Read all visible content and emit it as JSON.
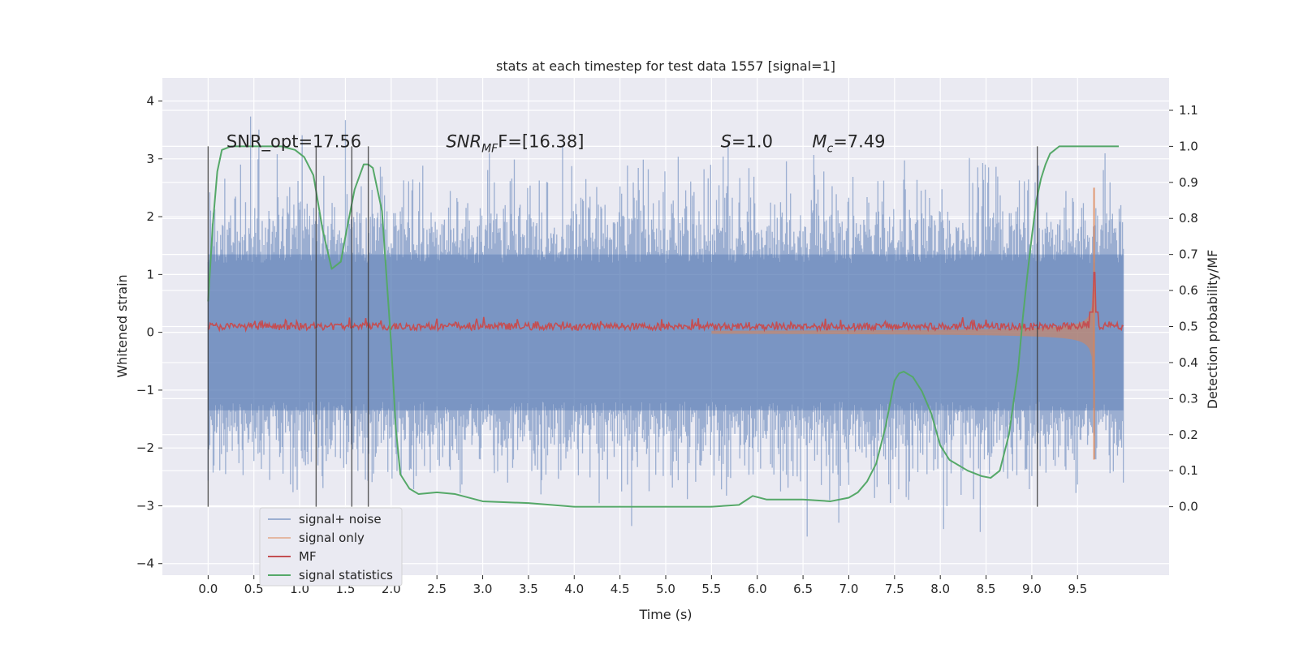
{
  "chart_data": {
    "type": "line",
    "title": "stats at each timestep for test data 1557 [signal=1]",
    "xlabel": "Time (s)",
    "ylabel": "Whitened strain",
    "y2label": "Detection probability/MF",
    "xlim": [
      -0.5,
      10.5
    ],
    "ylim": [
      -4.2,
      4.4
    ],
    "y2lim": [
      -0.19,
      1.19
    ],
    "xticks": [
      "0.0",
      "0.5",
      "1.0",
      "1.5",
      "2.0",
      "2.5",
      "3.0",
      "3.5",
      "4.0",
      "4.5",
      "5.0",
      "5.5",
      "6.0",
      "6.5",
      "7.0",
      "7.5",
      "8.0",
      "8.5",
      "9.0",
      "9.5"
    ],
    "yticks": [
      "−4",
      "−3",
      "−2",
      "−1",
      "0",
      "1",
      "2",
      "3",
      "4"
    ],
    "y2ticks": [
      "0.0",
      "0.1",
      "0.2",
      "0.3",
      "0.4",
      "0.5",
      "0.6",
      "0.7",
      "0.8",
      "0.9",
      "1.0",
      "1.1"
    ],
    "grid": true,
    "background": "#EAEAF2",
    "legend_position": "lower-left",
    "annotations": [
      {
        "text": "SNR_opt=17.56",
        "x": 0.2,
        "y": 3.2
      },
      {
        "text_main": "SNR",
        "text_sub": "MF",
        "text_tail": "F=[16.38]",
        "x": 2.6,
        "y": 3.2
      },
      {
        "text_main": "S",
        "text_tail": "=1.0",
        "x": 5.6,
        "y": 3.2
      },
      {
        "text_main": "M",
        "text_sub": "c",
        "text_tail": "=7.49",
        "x": 6.6,
        "y": 3.2
      }
    ],
    "vertical_lines": [
      0.0,
      1.18,
      1.57,
      1.75,
      9.06
    ],
    "series": [
      {
        "name": "signal+ noise",
        "color": "#4C72B0",
        "axis": "left",
        "description_envelope": {
          "x_start": 0.0,
          "x_end": 10.0,
          "amplitude_1sigma": 1.0,
          "peak": 4.0
        }
      },
      {
        "name": "signal only",
        "color": "#DD8452",
        "axis": "left",
        "chirp": {
          "x_start": 5.5,
          "merger": 9.68,
          "amplitude_at_merger": 2.5
        }
      },
      {
        "name": "MF",
        "color": "#C44E52",
        "axis": "right",
        "baseline": 0.5,
        "peak": {
          "x": 9.68,
          "y": 0.65
        }
      },
      {
        "name": "signal statistics",
        "color": "#55A868",
        "axis": "right",
        "x": [
          0.0,
          0.05,
          0.1,
          0.15,
          0.25,
          0.4,
          0.6,
          0.8,
          0.95,
          1.05,
          1.15,
          1.25,
          1.35,
          1.45,
          1.5,
          1.6,
          1.7,
          1.75,
          1.8,
          1.9,
          2.0,
          2.05,
          2.1,
          2.2,
          2.3,
          2.5,
          2.7,
          3.0,
          3.5,
          4.0,
          4.5,
          5.0,
          5.5,
          5.8,
          5.95,
          6.1,
          6.3,
          6.5,
          6.8,
          7.0,
          7.1,
          7.2,
          7.3,
          7.4,
          7.5,
          7.55,
          7.6,
          7.7,
          7.8,
          7.9,
          8.0,
          8.1,
          8.3,
          8.45,
          8.55,
          8.65,
          8.75,
          8.85,
          8.9,
          8.95,
          9.0,
          9.05,
          9.1,
          9.15,
          9.2,
          9.3,
          9.4,
          9.6,
          9.95
        ],
        "y": [
          0.57,
          0.78,
          0.93,
          0.99,
          1.0,
          1.0,
          1.0,
          1.0,
          0.99,
          0.97,
          0.92,
          0.77,
          0.66,
          0.68,
          0.75,
          0.88,
          0.95,
          0.95,
          0.94,
          0.82,
          0.45,
          0.22,
          0.09,
          0.05,
          0.035,
          0.04,
          0.035,
          0.015,
          0.01,
          0.0,
          0.0,
          0.0,
          0.0,
          0.005,
          0.03,
          0.02,
          0.02,
          0.02,
          0.015,
          0.025,
          0.04,
          0.07,
          0.12,
          0.22,
          0.35,
          0.37,
          0.375,
          0.36,
          0.32,
          0.26,
          0.17,
          0.13,
          0.1,
          0.085,
          0.08,
          0.1,
          0.2,
          0.38,
          0.52,
          0.64,
          0.75,
          0.85,
          0.91,
          0.95,
          0.98,
          1.0,
          1.0,
          1.0,
          1.0
        ]
      }
    ]
  }
}
